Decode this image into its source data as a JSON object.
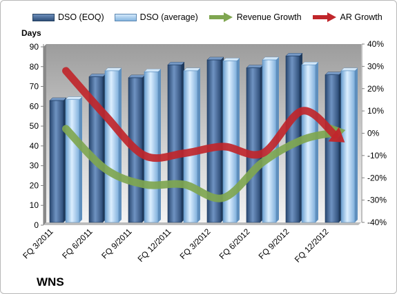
{
  "chart_data": {
    "type": "bar",
    "title": "",
    "company": "WNS",
    "categories": [
      "FQ 3/2011",
      "FQ 6/2011",
      "FQ 9/2011",
      "FQ 12/2011",
      "FQ 3/2012",
      "FQ 6/2012",
      "FQ 9/2012",
      "FQ 12/2012"
    ],
    "ylabel": "Days",
    "ylim": [
      0,
      90
    ],
    "yticks": [
      "0",
      "10",
      "20",
      "30",
      "40",
      "50",
      "60",
      "70",
      "80",
      "90"
    ],
    "y2lim": [
      -0.4,
      0.4
    ],
    "y2ticks": [
      "-40%",
      "-30%",
      "-20%",
      "-10%",
      "0%",
      "10%",
      "20%",
      "30%",
      "40%"
    ],
    "legend_position": "top",
    "grid": false,
    "series": [
      {
        "name": "DSO (EOQ)",
        "type": "bar",
        "axis": "left",
        "color": "#3f5f8c",
        "values": [
          61.5,
          73.5,
          73,
          79.5,
          82,
          78,
          84,
          74.5
        ]
      },
      {
        "name": "DSO (average)",
        "type": "bar",
        "axis": "left",
        "color": "#a9cdee",
        "values": [
          62,
          76.5,
          76,
          76.5,
          81.5,
          82,
          79.5,
          76.5
        ]
      },
      {
        "name": "Revenue Growth",
        "type": "line-arrow",
        "axis": "right",
        "color": "#7fa650",
        "values": [
          0.02,
          -0.16,
          -0.23,
          -0.23,
          -0.29,
          -0.13,
          -0.03,
          0.01
        ]
      },
      {
        "name": "AR Growth",
        "type": "line-arrow",
        "axis": "right",
        "color": "#c0262b",
        "values": [
          0.28,
          0.08,
          -0.1,
          -0.09,
          -0.06,
          -0.09,
          0.1,
          -0.03
        ]
      }
    ]
  }
}
